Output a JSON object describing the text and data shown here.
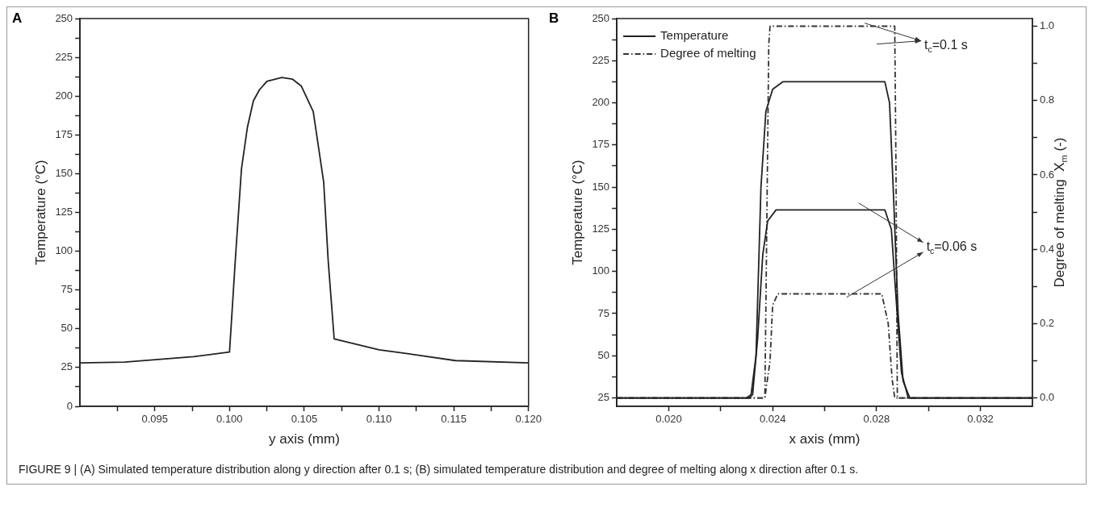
{
  "chart_data": [
    {
      "type": "line",
      "title": "A",
      "xlabel": "y axis (mm)",
      "ylabel": "Temperature (°C)",
      "xlim": [
        0.09,
        0.12
      ],
      "xticks": [
        {
          "value": 0.0925,
          "label": null
        },
        0.095,
        {
          "value": 0.0975,
          "label": null
        },
        {
          "value": 0.1,
          "label": "0.100"
        },
        {
          "value": 0.1025,
          "label": null
        },
        0.105,
        {
          "value": 0.1075,
          "label": null
        },
        {
          "value": 0.11,
          "label": "0.110"
        },
        {
          "value": 0.1125,
          "label": null
        },
        0.115,
        {
          "value": 0.1175,
          "label": null
        },
        {
          "value": 0.12,
          "label": "0.120"
        }
      ],
      "ylim": [
        0,
        250
      ],
      "yticks": [
        0,
        {
          "value": 12.5,
          "label": null
        },
        25,
        {
          "value": 37.5,
          "label": null
        },
        50,
        {
          "value": 62.5,
          "label": null
        },
        75,
        {
          "value": 87.5,
          "label": null
        },
        100,
        {
          "value": 112.5,
          "label": null
        },
        125,
        {
          "value": 137.5,
          "label": null
        },
        150,
        {
          "value": 162.5,
          "label": null
        },
        175,
        {
          "value": 187.5,
          "label": null
        },
        200,
        {
          "value": 212.5,
          "label": null
        },
        225,
        {
          "value": 237.5,
          "label": null
        },
        250
      ],
      "grid": false,
      "legend": false,
      "marker": "none",
      "line_style": "solid",
      "series": [
        {
          "color": "#222222",
          "x": [
            0.09,
            0.093,
            0.0976,
            0.1,
            0.1004,
            0.1008,
            0.1012,
            0.1016,
            0.102,
            0.1025,
            0.1035,
            0.1042,
            0.1048,
            0.1056,
            0.1063,
            0.1066,
            0.107,
            0.11,
            0.1119,
            0.1151,
            0.12
          ],
          "values": [
            28,
            28.5,
            32,
            35,
            96,
            153,
            180,
            197,
            204,
            209.5,
            212,
            211,
            206.5,
            190,
            144.5,
            94,
            43.5,
            36.5,
            34,
            29.5,
            28
          ]
        }
      ],
      "annotations": [
        "FIGURE 9 | (A) Simulated temperature distribution along y direction after 0.1 s; (B) simulated temperature distribution and degree of melting along x direction after 0.1 s."
      ]
    },
    {
      "type": "line",
      "title": "B",
      "xlabel": "x axis (mm)",
      "ylabel": "Temperature (°C)",
      "y2label": "Degree of melting  X$_{m}$ (-)",
      "xlim": [
        0.018,
        0.034
      ],
      "xticks": [
        {
          "value": 0.02,
          "label": "0.020"
        },
        {
          "value": 0.022,
          "label": null
        },
        0.024,
        {
          "value": 0.026,
          "label": null
        },
        0.028,
        {
          "value": 0.03,
          "label": null
        },
        0.032
      ],
      "ylim": [
        20,
        250
      ],
      "yticks": [
        25,
        {
          "value": 37.5,
          "label": null
        },
        50,
        {
          "value": 62.5,
          "label": null
        },
        75,
        {
          "value": 87.5,
          "label": null
        },
        100,
        {
          "value": 112.5,
          "label": null
        },
        125,
        {
          "value": 137.5,
          "label": null
        },
        150,
        {
          "value": 162.5,
          "label": null
        },
        175,
        {
          "value": 187.5,
          "label": null
        },
        200,
        {
          "value": 212.5,
          "label": null
        },
        225,
        {
          "value": 237.5,
          "label": null
        },
        250
      ],
      "y2lim": [
        -0.0226,
        1.0206
      ],
      "y2ticks": [
        {
          "value": 0,
          "label": "0.0"
        },
        {
          "value": 0.1,
          "label": null
        },
        0.2,
        {
          "value": 0.3,
          "label": null
        },
        0.4,
        {
          "value": 0.5,
          "label": null
        },
        0.6,
        {
          "value": 0.7,
          "label": null
        },
        0.8,
        {
          "value": 0.9,
          "label": null
        },
        {
          "value": 1,
          "label": "1.0"
        }
      ],
      "grid": false,
      "legend": "top left",
      "marker": "none",
      "series": [
        {
          "name": "Temperature",
          "color": "#222222",
          "line_style": "solid",
          "x": [
            0.018,
            0.023,
            0.02317,
            0.02336,
            0.02355,
            0.02374,
            0.024,
            0.02439,
            0.02832,
            0.0285,
            0.02864,
            0.02883,
            0.02902,
            0.02928,
            0.034
          ],
          "values": [
            25,
            25,
            27,
            50,
            150,
            195,
            208,
            212.5,
            212.5,
            200,
            150,
            75,
            35,
            25,
            25
          ]
        },
        {
          "color": "#222222",
          "line_style": "solid",
          "x": [
            0.018,
            0.0231,
            0.02323,
            0.02342,
            0.02362,
            0.02381,
            0.02413,
            0.02832,
            0.02857,
            0.02877,
            0.02896,
            0.02922,
            0.034
          ],
          "values": [
            25,
            25,
            27,
            60,
            110,
            130,
            136.5,
            136.5,
            125,
            80,
            40,
            25,
            25
          ]
        },
        {
          "name": "Degree of melting",
          "color": "#333333",
          "line_style": "dashed",
          "axis": "y2",
          "x": [
            0.018,
            0.0237,
            0.02378,
            0.02385,
            0.0239,
            0.0287,
            0.02875,
            0.0288,
            0.034
          ],
          "values": [
            0,
            0,
            0.5,
            0.95,
            1,
            1,
            0.6,
            0,
            0
          ]
        },
        {
          "color": "#333333",
          "line_style": "dashed",
          "axis": "y2",
          "x": [
            0.018,
            0.0237,
            0.0239,
            0.024,
            0.0242,
            0.0282,
            0.02845,
            0.0286,
            0.0287,
            0.034
          ],
          "values": [
            0,
            0,
            0.1,
            0.25,
            0.28,
            0.28,
            0.2,
            0.05,
            0,
            0
          ]
        }
      ],
      "annotations": [
        "t$_{c}$=0.1 s",
        "t$_{c}$=0.06 s"
      ]
    }
  ]
}
